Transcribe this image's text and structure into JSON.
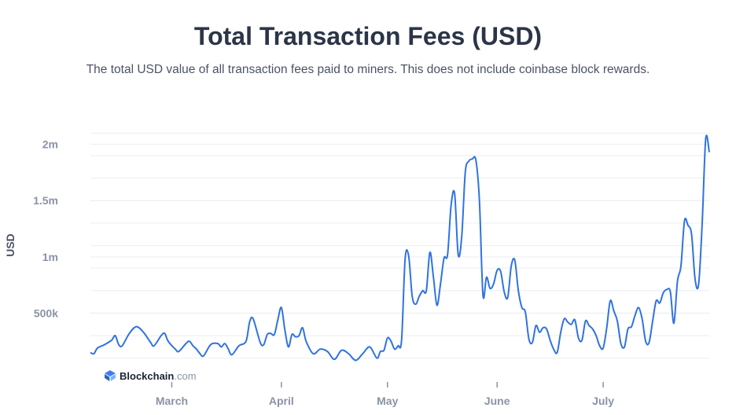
{
  "header": {
    "title": "Total Transaction Fees (USD)",
    "subtitle": "The total USD value of all transaction fees paid to miners. This does not include coinbase block rewards."
  },
  "brand": {
    "name": "Blockchain",
    "suffix": ".com",
    "icon": "blockchain-cube-icon"
  },
  "colors": {
    "line": "#2f73e0",
    "grid": "#eceef2",
    "text": "#2b3547",
    "muted": "#8a93a6"
  },
  "chart_data": {
    "type": "line",
    "title": "Total Transaction Fees (USD)",
    "subtitle": "The total USD value of all transaction fees paid to miners. This does not include coinbase block rewards.",
    "ylabel": "USD",
    "ylim": [
      0,
      2200000
    ],
    "yticks": [
      500000,
      1000000,
      1500000,
      2000000
    ],
    "ytick_labels": [
      "500k",
      "1m",
      "1.5m",
      "2m"
    ],
    "xrange": [
      "2023-02-06",
      "2023-07-31"
    ],
    "xticks": [
      "2023-03-01",
      "2023-04-01",
      "2023-05-01",
      "2023-06-01",
      "2023-07-01"
    ],
    "xtick_labels": [
      "March",
      "April",
      "May",
      "June",
      "July"
    ],
    "grid": true,
    "series": [
      {
        "points": [
          [
            "2023-02-06",
            150000
          ],
          [
            "2023-02-07",
            140000
          ],
          [
            "2023-02-08",
            190000
          ],
          [
            "2023-02-10",
            220000
          ],
          [
            "2023-02-12",
            260000
          ],
          [
            "2023-02-13",
            300000
          ],
          [
            "2023-02-14",
            220000
          ],
          [
            "2023-02-15",
            210000
          ],
          [
            "2023-02-17",
            320000
          ],
          [
            "2023-02-19",
            380000
          ],
          [
            "2023-02-21",
            330000
          ],
          [
            "2023-02-23",
            240000
          ],
          [
            "2023-02-24",
            210000
          ],
          [
            "2023-02-26",
            300000
          ],
          [
            "2023-02-27",
            320000
          ],
          [
            "2023-02-28",
            250000
          ],
          [
            "2023-03-02",
            180000
          ],
          [
            "2023-03-03",
            160000
          ],
          [
            "2023-03-05",
            230000
          ],
          [
            "2023-03-06",
            250000
          ],
          [
            "2023-03-07",
            210000
          ],
          [
            "2023-03-08",
            180000
          ],
          [
            "2023-03-09",
            140000
          ],
          [
            "2023-03-10",
            120000
          ],
          [
            "2023-03-12",
            220000
          ],
          [
            "2023-03-14",
            230000
          ],
          [
            "2023-03-15",
            200000
          ],
          [
            "2023-03-16",
            230000
          ],
          [
            "2023-03-17",
            180000
          ],
          [
            "2023-03-18",
            130000
          ],
          [
            "2023-03-20",
            210000
          ],
          [
            "2023-03-22",
            250000
          ],
          [
            "2023-03-23",
            420000
          ],
          [
            "2023-03-24",
            450000
          ],
          [
            "2023-03-26",
            240000
          ],
          [
            "2023-03-27",
            220000
          ],
          [
            "2023-03-28",
            310000
          ],
          [
            "2023-03-29",
            320000
          ],
          [
            "2023-03-30",
            310000
          ],
          [
            "2023-03-31",
            440000
          ],
          [
            "2023-04-01",
            550000
          ],
          [
            "2023-04-02",
            350000
          ],
          [
            "2023-04-03",
            200000
          ],
          [
            "2023-04-04",
            310000
          ],
          [
            "2023-04-05",
            290000
          ],
          [
            "2023-04-06",
            300000
          ],
          [
            "2023-04-07",
            370000
          ],
          [
            "2023-04-08",
            250000
          ],
          [
            "2023-04-10",
            140000
          ],
          [
            "2023-04-12",
            180000
          ],
          [
            "2023-04-14",
            160000
          ],
          [
            "2023-04-16",
            90000
          ],
          [
            "2023-04-18",
            170000
          ],
          [
            "2023-04-20",
            140000
          ],
          [
            "2023-04-22",
            80000
          ],
          [
            "2023-04-24",
            140000
          ],
          [
            "2023-04-26",
            200000
          ],
          [
            "2023-04-28",
            100000
          ],
          [
            "2023-04-29",
            160000
          ],
          [
            "2023-04-30",
            170000
          ],
          [
            "2023-05-01",
            280000
          ],
          [
            "2023-05-02",
            250000
          ],
          [
            "2023-05-03",
            180000
          ],
          [
            "2023-05-04",
            210000
          ],
          [
            "2023-05-05",
            260000
          ],
          [
            "2023-05-06",
            980000
          ],
          [
            "2023-05-07",
            1010000
          ],
          [
            "2023-05-08",
            650000
          ],
          [
            "2023-05-09",
            580000
          ],
          [
            "2023-05-10",
            650000
          ],
          [
            "2023-05-11",
            700000
          ],
          [
            "2023-05-12",
            700000
          ],
          [
            "2023-05-13",
            1040000
          ],
          [
            "2023-05-14",
            820000
          ],
          [
            "2023-05-15",
            570000
          ],
          [
            "2023-05-16",
            760000
          ],
          [
            "2023-05-17",
            990000
          ],
          [
            "2023-05-18",
            1020000
          ],
          [
            "2023-05-19",
            1460000
          ],
          [
            "2023-05-20",
            1560000
          ],
          [
            "2023-05-21",
            1020000
          ],
          [
            "2023-05-22",
            1180000
          ],
          [
            "2023-05-23",
            1750000
          ],
          [
            "2023-05-24",
            1850000
          ],
          [
            "2023-05-25",
            1870000
          ],
          [
            "2023-05-26",
            1860000
          ],
          [
            "2023-05-27",
            1500000
          ],
          [
            "2023-05-28",
            660000
          ],
          [
            "2023-05-29",
            820000
          ],
          [
            "2023-05-30",
            720000
          ],
          [
            "2023-05-31",
            760000
          ],
          [
            "2023-06-01",
            880000
          ],
          [
            "2023-06-02",
            870000
          ],
          [
            "2023-06-03",
            690000
          ],
          [
            "2023-06-04",
            640000
          ],
          [
            "2023-06-05",
            920000
          ],
          [
            "2023-06-06",
            970000
          ],
          [
            "2023-06-07",
            700000
          ],
          [
            "2023-06-08",
            550000
          ],
          [
            "2023-06-09",
            510000
          ],
          [
            "2023-06-10",
            270000
          ],
          [
            "2023-06-11",
            240000
          ],
          [
            "2023-06-12",
            390000
          ],
          [
            "2023-06-13",
            330000
          ],
          [
            "2023-06-14",
            370000
          ],
          [
            "2023-06-15",
            360000
          ],
          [
            "2023-06-16",
            260000
          ],
          [
            "2023-06-17",
            180000
          ],
          [
            "2023-06-18",
            150000
          ],
          [
            "2023-06-19",
            330000
          ],
          [
            "2023-06-20",
            450000
          ],
          [
            "2023-06-21",
            420000
          ],
          [
            "2023-06-22",
            400000
          ],
          [
            "2023-06-23",
            440000
          ],
          [
            "2023-06-24",
            280000
          ],
          [
            "2023-06-25",
            260000
          ],
          [
            "2023-06-26",
            430000
          ],
          [
            "2023-06-27",
            390000
          ],
          [
            "2023-06-28",
            360000
          ],
          [
            "2023-06-29",
            300000
          ],
          [
            "2023-06-30",
            210000
          ],
          [
            "2023-07-01",
            190000
          ],
          [
            "2023-07-02",
            370000
          ],
          [
            "2023-07-03",
            610000
          ],
          [
            "2023-07-04",
            520000
          ],
          [
            "2023-07-05",
            430000
          ],
          [
            "2023-07-06",
            230000
          ],
          [
            "2023-07-07",
            200000
          ],
          [
            "2023-07-08",
            360000
          ],
          [
            "2023-07-09",
            380000
          ],
          [
            "2023-07-10",
            480000
          ],
          [
            "2023-07-11",
            550000
          ],
          [
            "2023-07-12",
            450000
          ],
          [
            "2023-07-13",
            250000
          ],
          [
            "2023-07-14",
            240000
          ],
          [
            "2023-07-15",
            430000
          ],
          [
            "2023-07-16",
            610000
          ],
          [
            "2023-07-17",
            590000
          ],
          [
            "2023-07-18",
            680000
          ],
          [
            "2023-07-19",
            710000
          ],
          [
            "2023-07-20",
            690000
          ],
          [
            "2023-07-21",
            410000
          ],
          [
            "2023-07-22",
            780000
          ],
          [
            "2023-07-23",
            920000
          ],
          [
            "2023-07-24",
            1320000
          ],
          [
            "2023-07-25",
            1280000
          ],
          [
            "2023-07-26",
            1200000
          ],
          [
            "2023-07-27",
            800000
          ],
          [
            "2023-07-28",
            760000
          ],
          [
            "2023-07-29",
            1300000
          ],
          [
            "2023-07-30",
            2050000
          ],
          [
            "2023-07-31",
            1930000
          ]
        ]
      }
    ]
  }
}
